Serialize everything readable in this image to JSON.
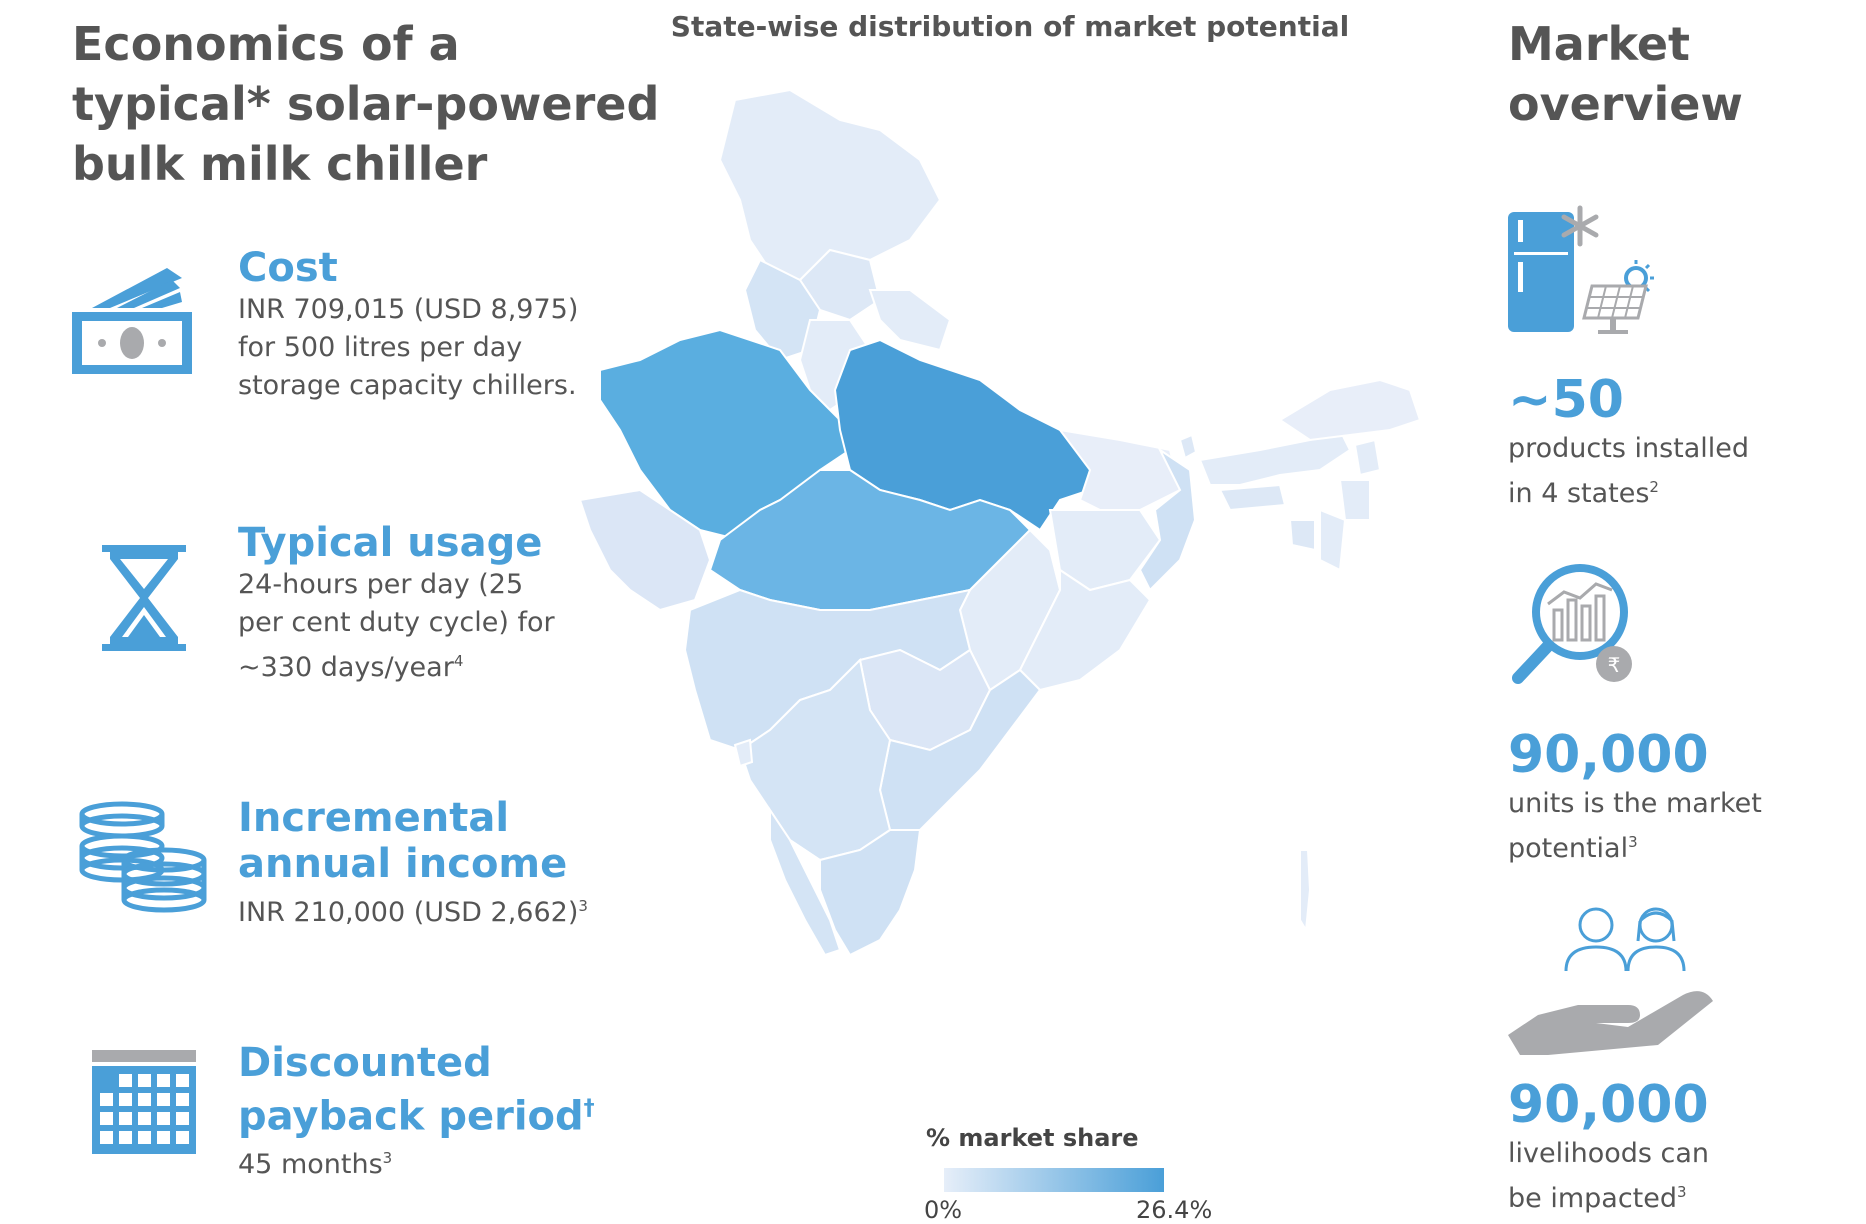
{
  "left": {
    "title_lines": [
      "Economics of a",
      "typical* solar-powered",
      "bulk milk chiller"
    ],
    "items": [
      {
        "icon": "money-icon",
        "heading": "Cost",
        "lines": [
          "INR 709,015 (USD 8,975)",
          "for 500 litres per day",
          "storage capacity chillers."
        ]
      },
      {
        "icon": "hourglass-icon",
        "heading": "Typical usage",
        "lines": [
          "24-hours per day (25",
          "per cent duty cycle) for",
          "~330 days/year"
        ],
        "last_sup": "4"
      },
      {
        "icon": "coins-icon",
        "heading_lines": [
          "Incremental",
          "annual income"
        ],
        "lines": [
          "INR 210,000 (USD 2,662)"
        ],
        "last_sup": "3"
      },
      {
        "icon": "calendar-icon",
        "heading_lines": [
          "Discounted",
          "payback period"
        ],
        "heading_sup": "†",
        "lines": [
          "45 months"
        ],
        "last_sup": "3"
      }
    ]
  },
  "map": {
    "title": "State-wise distribution of market potential",
    "legend": {
      "title": "% market share",
      "min_label": "0%",
      "max_label": "26.4%",
      "min_value": 0,
      "max_value": 26.4
    },
    "colors": {
      "low": "#e3ecf8",
      "mid": "#cfe1f4",
      "high": "#5aaee0",
      "max": "#4a9fd8",
      "border": "#ffffff"
    }
  },
  "right": {
    "title_lines": [
      "Market",
      "overview"
    ],
    "stats": [
      {
        "icon": "solar-fridge-icon",
        "value": "~50",
        "lines": [
          "products installed",
          "in 4 states"
        ],
        "last_sup": "2"
      },
      {
        "icon": "market-analysis-icon",
        "value": "90,000",
        "lines": [
          "units is the market",
          "potential"
        ],
        "last_sup": "3"
      },
      {
        "icon": "livelihood-hand-icon",
        "value": "90,000",
        "lines": [
          "livelihoods can",
          "be impacted"
        ],
        "last_sup": "3"
      }
    ]
  },
  "colors": {
    "accent": "#4a9fd8",
    "text": "#555555",
    "grey_icon": "#a9aaad"
  }
}
